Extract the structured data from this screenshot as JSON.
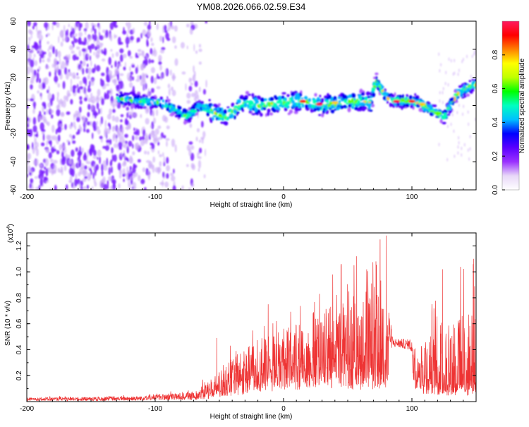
{
  "title": "YM08.2026.066.02.59.E34",
  "chart_data": [
    {
      "type": "heatmap",
      "name": "spectrogram",
      "xlabel": "Height of straight line (km)",
      "ylabel": "Frequency (Hz)",
      "xlim": [
        -200,
        150
      ],
      "ylim": [
        -60,
        60
      ],
      "xticks": [
        -200,
        -100,
        0,
        100
      ],
      "yticks": [
        60,
        40,
        20,
        0,
        -20,
        -40,
        -60
      ],
      "colorbar": {
        "label": "Normalized spectral amplitude",
        "range": [
          0,
          1
        ],
        "ticks": [
          0.0,
          0.2,
          0.4,
          0.6,
          0.8
        ],
        "tick_labels": [
          "0.0",
          "0.2",
          "0.4",
          "0.6",
          "0.8"
        ],
        "colors": [
          "#ffffff",
          "#e8d8f8",
          "#9a30ff",
          "#5a00ff",
          "#0000ff",
          "#00c0ff",
          "#00ffc0",
          "#00ff00",
          "#c0ff00",
          "#ffff00",
          "#ff8000",
          "#ff0000",
          "#ff1a60"
        ]
      },
      "trace": [
        {
          "x": -130,
          "y": 5
        },
        {
          "x": -110,
          "y": 3
        },
        {
          "x": -95,
          "y": 2
        },
        {
          "x": -85,
          "y": -3
        },
        {
          "x": -75,
          "y": -8
        },
        {
          "x": -65,
          "y": 0
        },
        {
          "x": -55,
          "y": -5
        },
        {
          "x": -45,
          "y": -8
        },
        {
          "x": -30,
          "y": 2
        },
        {
          "x": -15,
          "y": 0
        },
        {
          "x": 0,
          "y": 2
        },
        {
          "x": 15,
          "y": 3
        },
        {
          "x": 30,
          "y": 0
        },
        {
          "x": 45,
          "y": 2
        },
        {
          "x": 60,
          "y": 3
        },
        {
          "x": 68,
          "y": 2
        },
        {
          "x": 72,
          "y": 18
        },
        {
          "x": 76,
          "y": 12
        },
        {
          "x": 82,
          "y": 4
        },
        {
          "x": 95,
          "y": 3
        },
        {
          "x": 105,
          "y": 2
        },
        {
          "x": 115,
          "y": -3
        },
        {
          "x": 125,
          "y": -8
        },
        {
          "x": 135,
          "y": 8
        },
        {
          "x": 148,
          "y": 15
        }
      ],
      "hot_spots": [
        {
          "x": 15,
          "y": 3,
          "amp": 0.9
        },
        {
          "x": 28,
          "y": 1,
          "amp": 0.95
        },
        {
          "x": 40,
          "y": 2,
          "amp": 0.85
        },
        {
          "x": 88,
          "y": 3,
          "amp": 0.95
        },
        {
          "x": 100,
          "y": 3,
          "amp": 0.9
        },
        {
          "x": 108,
          "y": 1,
          "amp": 0.85
        }
      ]
    },
    {
      "type": "line",
      "name": "snr",
      "xlabel": "Height of straight line (km)",
      "ylabel": "SNR (10 * v/v)",
      "y_scale_label": "(x10",
      "y_scale_exp": "4",
      "y_scale_close": ")",
      "xlim": [
        -200,
        150
      ],
      "ylim": [
        0,
        13000
      ],
      "xticks": [
        -200,
        -100,
        0,
        100
      ],
      "yticks": [
        2000,
        4000,
        6000,
        8000,
        10000,
        12000
      ],
      "ytick_labels": [
        "0.2",
        "0.4",
        "0.6",
        "0.8",
        "1.0",
        "1.2"
      ],
      "series": [
        {
          "name": "SNR",
          "color": "#ee3333",
          "envelope": [
            {
              "x": -200,
              "base": 200,
              "peak": 400
            },
            {
              "x": -150,
              "base": 200,
              "peak": 450
            },
            {
              "x": -110,
              "base": 250,
              "peak": 550
            },
            {
              "x": -90,
              "base": 350,
              "peak": 800
            },
            {
              "x": -70,
              "base": 400,
              "peak": 1000
            },
            {
              "x": -55,
              "base": 800,
              "peak": 2500
            },
            {
              "x": -40,
              "base": 1500,
              "peak": 4500
            },
            {
              "x": -20,
              "base": 2200,
              "peak": 6500
            },
            {
              "x": 0,
              "base": 2800,
              "peak": 7500
            },
            {
              "x": 20,
              "base": 3000,
              "peak": 8500
            },
            {
              "x": 40,
              "base": 3500,
              "peak": 10500
            },
            {
              "x": 60,
              "base": 3000,
              "peak": 11000
            },
            {
              "x": 75,
              "base": 3000,
              "peak": 12800
            },
            {
              "x": 85,
              "base": 4200,
              "peak": 4900
            },
            {
              "x": 98,
              "base": 4000,
              "peak": 4800
            },
            {
              "x": 108,
              "base": 2000,
              "peak": 6000
            },
            {
              "x": 125,
              "base": 1500,
              "peak": 10000
            },
            {
              "x": 150,
              "base": 1500,
              "peak": 11000
            }
          ],
          "peaks": [
            {
              "x": -52,
              "y": 4900
            },
            {
              "x": -12,
              "y": 7500
            },
            {
              "x": 28,
              "y": 8300
            },
            {
              "x": 45,
              "y": 10600
            },
            {
              "x": 57,
              "y": 11200
            },
            {
              "x": 72,
              "y": 10800
            },
            {
              "x": 80,
              "y": 12800
            },
            {
              "x": 124,
              "y": 10200
            },
            {
              "x": 148,
              "y": 11000
            }
          ]
        }
      ]
    }
  ]
}
